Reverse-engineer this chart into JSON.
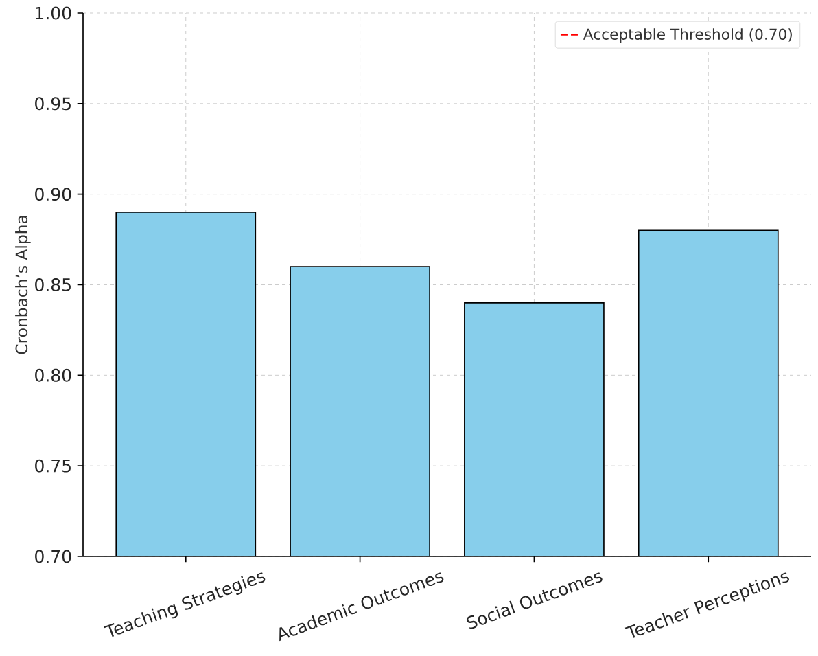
{
  "chart_data": {
    "type": "bar",
    "ylabel": "Cronbach’s Alpha",
    "categories": [
      "Teaching Strategies",
      "Academic Outcomes",
      "Social Outcomes",
      "Teacher Perceptions"
    ],
    "values": [
      0.89,
      0.86,
      0.84,
      0.88
    ],
    "color": "#87ceeb",
    "ylim": [
      0.7,
      1.0
    ],
    "yticks": [
      {
        "value": 0.7,
        "label": "0.70"
      },
      {
        "value": 0.75,
        "label": "0.75"
      },
      {
        "value": 0.8,
        "label": "0.80"
      },
      {
        "value": 0.85,
        "label": "0.85"
      },
      {
        "value": 0.9,
        "label": "0.90"
      },
      {
        "value": 0.95,
        "label": "0.95"
      },
      {
        "value": 1.0,
        "label": "1.00"
      }
    ],
    "grid": true,
    "legend": "top right",
    "ref_lines": [
      {
        "axis": "y",
        "value": 0.7,
        "label": "Acceptable Threshold (0.70)",
        "color": "#ff0000",
        "line_style": "dashed"
      }
    ]
  }
}
